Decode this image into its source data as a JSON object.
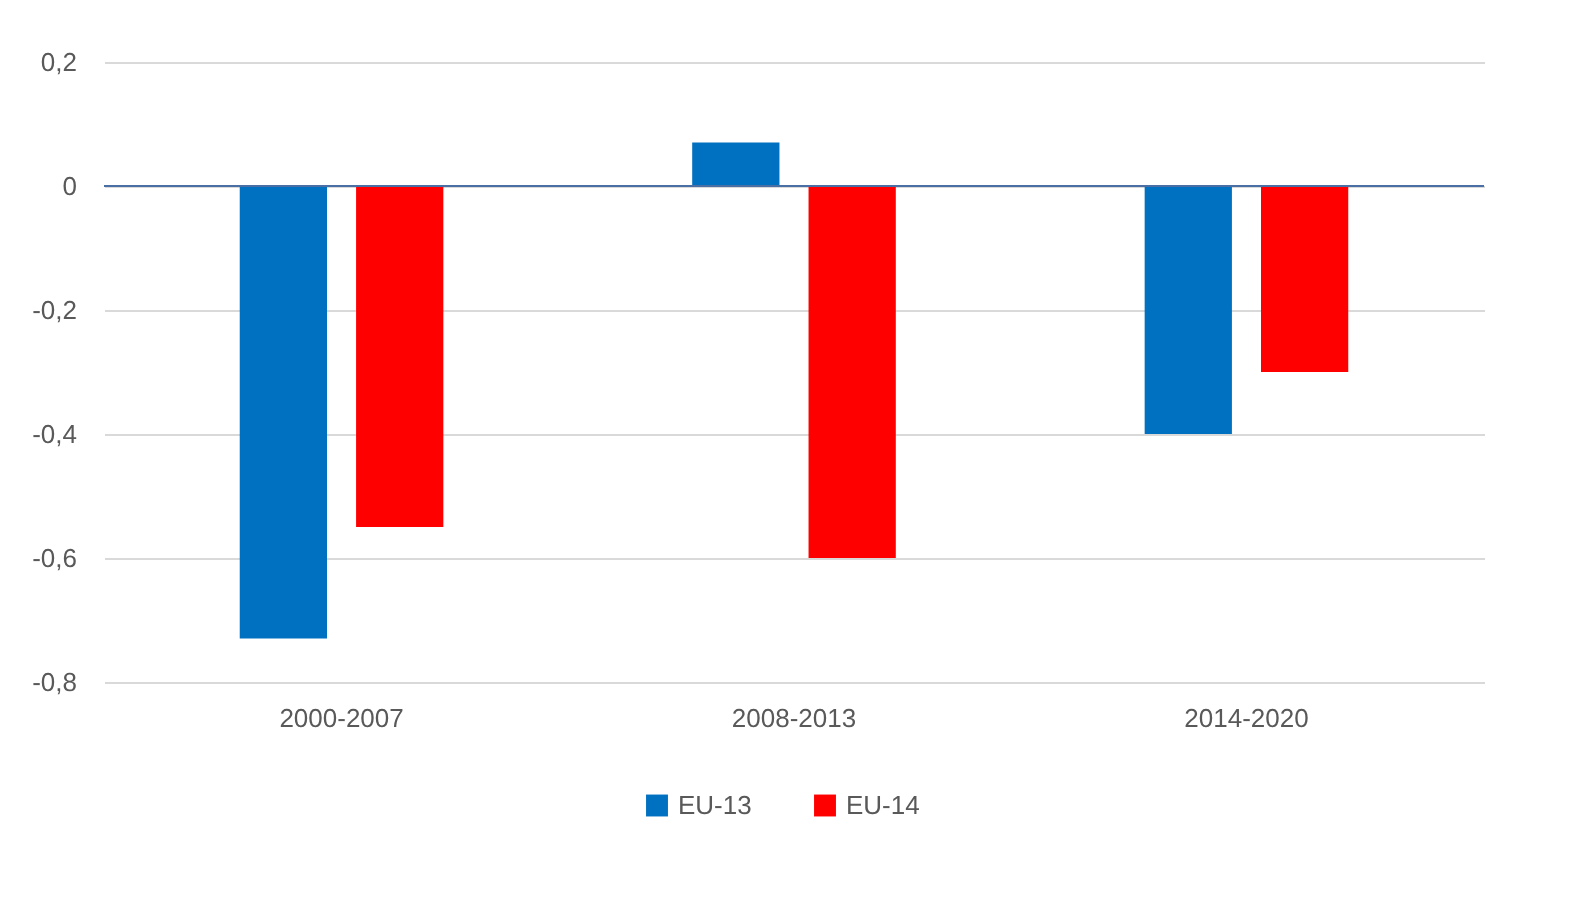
{
  "chart_data": {
    "type": "bar",
    "categories": [
      "2000-2007",
      "2008-2013",
      "2014-2020"
    ],
    "series": [
      {
        "name": "EU-13",
        "color": "#0070c0",
        "values": [
          -0.73,
          0.07,
          -0.4
        ]
      },
      {
        "name": "EU-14",
        "color": "#ff0000",
        "values": [
          -0.55,
          -0.6,
          -0.3
        ]
      }
    ],
    "ylim": [
      -0.8,
      0.2
    ],
    "yticks": [
      {
        "value": 0.2,
        "label": "0,2"
      },
      0,
      {
        "value": -0.2,
        "label": "-0,2"
      },
      {
        "value": -0.4,
        "label": "-0,4"
      },
      {
        "value": -0.6,
        "label": "-0,6"
      },
      {
        "value": -0.8,
        "label": "-0,8"
      }
    ],
    "ref_lines": [
      {
        "axis": "y",
        "value": 0,
        "color": "#4a6fa5"
      }
    ],
    "grid": "y",
    "legend": "bottom"
  }
}
